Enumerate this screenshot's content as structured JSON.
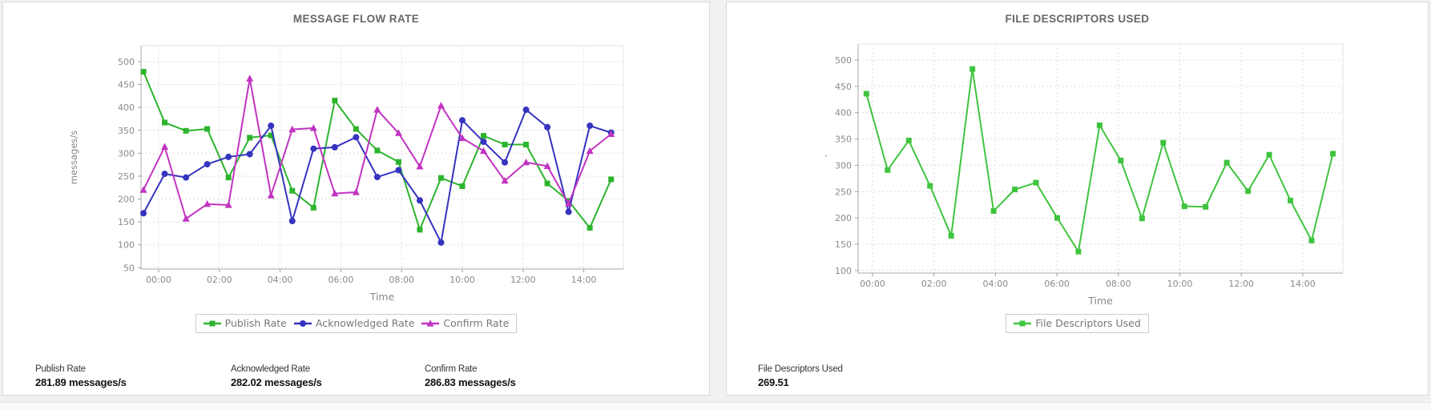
{
  "page": {
    "background_color": "#f1f1f1"
  },
  "chart_data": [
    {
      "type": "line",
      "title": "MESSAGE FLOW RATE",
      "xlabel": "Time",
      "ylabel": "messages/s",
      "ylim": [
        49,
        535
      ],
      "grid": true,
      "legend_position": "bottom",
      "y_ticks": [
        500,
        450,
        400,
        350,
        300,
        250,
        200,
        150,
        100,
        50
      ],
      "x_tick_labels": [
        "00:00",
        "02:00",
        "04:00",
        "06:00",
        "08:00",
        "10:00",
        "12:00",
        "14:00"
      ],
      "x_tick_hours": [
        0,
        2,
        4,
        6,
        8,
        10,
        12,
        14
      ],
      "x_hours": [
        -0.5,
        0.2,
        0.9,
        1.6,
        2.3,
        3.0,
        3.7,
        4.4,
        5.1,
        5.8,
        6.5,
        7.2,
        7.9,
        8.6,
        9.3,
        10.0,
        10.7,
        11.4,
        12.1,
        12.8,
        13.5,
        14.2,
        14.9
      ],
      "series": [
        {
          "name": "Publish Rate",
          "color": "#2db42d",
          "marker": "square",
          "values": [
            478,
            367,
            349,
            353,
            247,
            334,
            339,
            218,
            181,
            415,
            353,
            306,
            281,
            133,
            246,
            228,
            338,
            319,
            319,
            234,
            196,
            137,
            243
          ]
        },
        {
          "name": "Acknowledged Rate",
          "color": "#3533bf",
          "marker": "circle",
          "values": [
            169,
            255,
            247,
            276,
            292,
            298,
            360,
            152,
            310,
            313,
            335,
            248,
            263,
            197,
            105,
            372,
            325,
            280,
            395,
            357,
            172,
            360,
            345
          ]
        },
        {
          "name": "Confirm Rate",
          "color": "#c133c1",
          "marker": "triangle",
          "values": [
            220,
            314,
            157,
            189,
            187,
            463,
            208,
            352,
            355,
            212,
            215,
            395,
            344,
            271,
            404,
            333,
            305,
            240,
            280,
            272,
            190,
            305,
            342
          ]
        }
      ],
      "footer_stats": [
        {
          "label": "Publish Rate",
          "value": "281.89 messages/s"
        },
        {
          "label": "Acknowledged Rate",
          "value": "282.02 messages/s"
        },
        {
          "label": "Confirm Rate",
          "value": "286.83 messages/s"
        }
      ]
    },
    {
      "type": "line",
      "title": "FILE DESCRIPTORS USED",
      "xlabel": "Time",
      "ylabel": "'",
      "ylim": [
        95,
        540
      ],
      "grid": true,
      "legend_position": "bottom",
      "y_ticks": [
        500,
        450,
        400,
        350,
        300,
        250,
        200,
        150,
        100
      ],
      "x_tick_labels": [
        "00:00",
        "02:00",
        "04:00",
        "06:00",
        "08:00",
        "10:00",
        "12:00",
        "14:00"
      ],
      "x_tick_hours": [
        0,
        2,
        4,
        6,
        8,
        10,
        12,
        14
      ],
      "x_hours": [
        -0.2,
        0.49,
        1.18,
        1.87,
        2.56,
        3.25,
        3.94,
        4.63,
        5.32,
        6.01,
        6.7,
        7.39,
        8.08,
        8.77,
        9.46,
        10.15,
        10.84,
        11.53,
        12.22,
        12.91,
        13.6,
        14.29,
        14.98
      ],
      "series": [
        {
          "name": "File Descriptors Used",
          "color": "#3fc43f",
          "marker": "square",
          "values": [
            436,
            291,
            347,
            261,
            166,
            483,
            213,
            254,
            267,
            200,
            136,
            376,
            309,
            199,
            343,
            222,
            221,
            305,
            251,
            320,
            233,
            157,
            322
          ]
        }
      ],
      "footer_stats": [
        {
          "label": "File Descriptors Used",
          "value": "269.51"
        }
      ]
    }
  ]
}
